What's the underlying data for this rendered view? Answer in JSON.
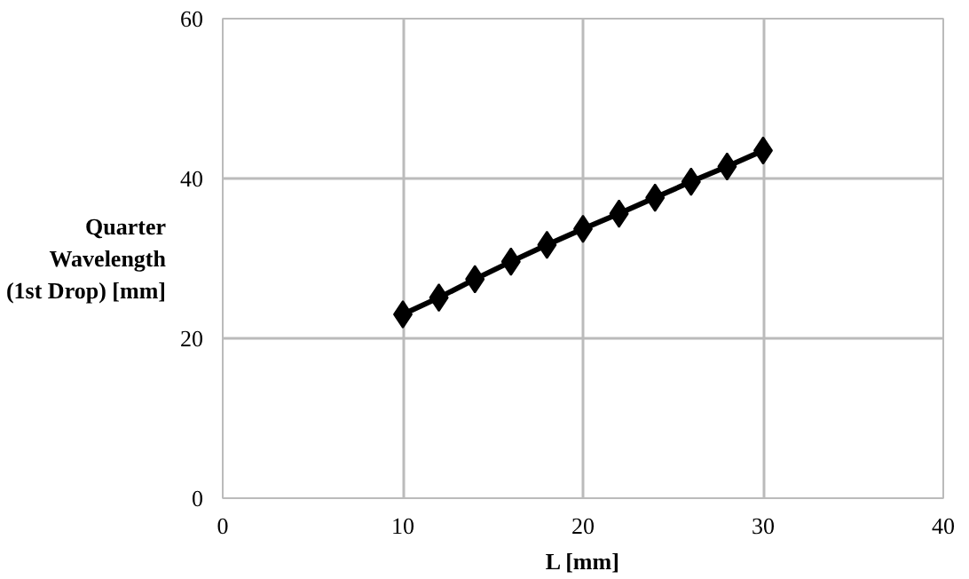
{
  "chart_data": {
    "type": "line",
    "xlabel": "L [mm]",
    "ylabel": "Quarter\nWavelength\n(1st Drop) [mm]",
    "x": [
      10,
      12,
      14,
      16,
      18,
      20,
      22,
      24,
      26,
      28,
      30
    ],
    "series": [
      {
        "color": "#000000",
        "values": [
          23,
          25.1,
          27.4,
          29.6,
          31.7,
          33.7,
          35.6,
          37.6,
          39.6,
          41.5,
          43.5
        ]
      }
    ],
    "xlim": [
      0,
      40
    ],
    "ylim": [
      0,
      60
    ],
    "xticks": [
      0,
      10,
      20,
      30,
      40
    ],
    "yticks": [
      0,
      20,
      40,
      60
    ],
    "grid": true,
    "marker": "diamond",
    "line_style": "solid"
  }
}
